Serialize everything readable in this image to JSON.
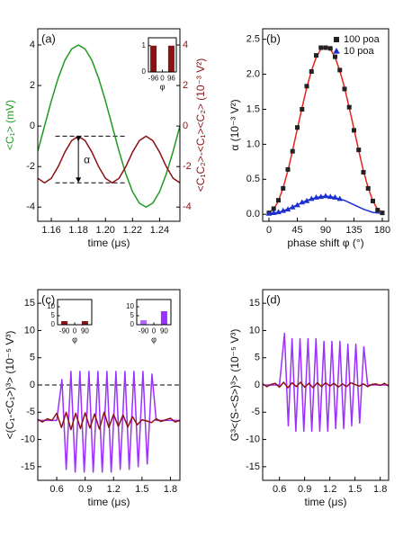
{
  "chart_data": [
    {
      "type": "line",
      "label": "(a)",
      "xlabel": "time (μs)",
      "ylabel": "<C₁> (mV)",
      "y2label": "<C₁C₂>-<C₁><C₂> (10⁻³ V²)",
      "ylabel_color": "#1f9a1f",
      "y2label_color": "#8b1212",
      "xlim": [
        1.15,
        1.255
      ],
      "xticks": [
        1.16,
        1.18,
        {
          "value": 1.2,
          "label": "1.20"
        },
        1.22,
        1.24
      ],
      "ylim": [
        -4.7,
        4.8
      ],
      "yticks": [
        -4,
        -2,
        0,
        2,
        4
      ],
      "y2lim": [
        -4.7,
        4.8
      ],
      "y2ticks": [
        -4,
        -2,
        0,
        2,
        4
      ],
      "x": [
        1.15,
        1.155,
        1.16,
        1.165,
        1.17,
        1.175,
        1.18,
        1.185,
        1.19,
        1.195,
        1.2,
        1.205,
        1.21,
        1.215,
        1.22,
        1.225,
        1.23,
        1.235,
        1.24,
        1.245,
        1.25,
        1.255
      ],
      "series": [
        {
          "color": "#1f9a1f",
          "values": [
            -1.24,
            0,
            1.24,
            2.35,
            3.24,
            3.8,
            4,
            3.8,
            3.24,
            2.35,
            1.24,
            0,
            -1.24,
            -2.35,
            -3.24,
            -3.8,
            -4,
            -3.8,
            -3.24,
            -2.35,
            -1.24,
            0
          ]
        },
        {
          "color": "#8b1212",
          "axis": "y2",
          "values": [
            -2.58,
            -2.8,
            -2.58,
            -2.01,
            -1.29,
            -0.72,
            -0.5,
            -0.72,
            -1.29,
            -2.01,
            -2.58,
            -2.8,
            -2.58,
            -2.01,
            -1.29,
            -0.72,
            -0.5,
            -0.72,
            -1.29,
            -2.01,
            -2.58,
            -2.8
          ]
        }
      ],
      "hlines": [
        {
          "y": -0.5,
          "xmin": 1.163,
          "xmax": 1.215
        },
        {
          "y": -2.8,
          "xmin": 1.163,
          "xmax": 1.215
        }
      ],
      "arrow": {
        "x": 1.18,
        "y": [
          -0.5,
          -2.8
        ]
      },
      "annotations": [
        {
          "text": "α",
          "x": 1.184,
          "y": -1.7
        }
      ]
    },
    {
      "type": "bar",
      "xlabel": "φ",
      "xlim": [
        -150,
        150
      ],
      "xticks": [
        -96,
        0,
        96
      ],
      "ylim": [
        0,
        1.3
      ],
      "yticks": [
        0,
        1
      ],
      "x": [
        -96,
        96
      ],
      "values": [
        1,
        1
      ],
      "colors": [
        "#8b1212",
        "#8b1212"
      ]
    },
    {
      "type": "line",
      "label": "(b)",
      "xlabel": "phase shift φ (°)",
      "ylabel": "α (10⁻³ V²)",
      "legend": "upper right",
      "xlim": [
        -10,
        190
      ],
      "xticks": [
        0,
        45,
        90,
        135,
        180
      ],
      "ylim": [
        -0.1,
        2.65
      ],
      "yticks": [
        {
          "value": 0,
          "label": "0.0"
        },
        0.5,
        {
          "value": 1,
          "label": "1.0"
        },
        1.5,
        {
          "value": 2,
          "label": "2.0"
        },
        2.5
      ],
      "series": [
        {
          "color": "#e8201a",
          "x": [
            0,
            7.5,
            15,
            22.5,
            30,
            37.5,
            45,
            52.5,
            60,
            67.5,
            75,
            82.5,
            90,
            97.5,
            105,
            112.5,
            120,
            127.5,
            135,
            142.5,
            150,
            157.5,
            165,
            172.5,
            180
          ],
          "values": [
            0.03,
            0.07,
            0.19,
            0.38,
            0.62,
            0.91,
            1.22,
            1.52,
            1.81,
            2.05,
            2.24,
            2.36,
            2.4,
            2.36,
            2.24,
            2.05,
            1.81,
            1.52,
            1.22,
            0.91,
            0.62,
            0.38,
            0.19,
            0.07,
            0.03
          ]
        },
        {
          "color": "#1b2fd0",
          "x": [
            0,
            15,
            30,
            45,
            60,
            75,
            90,
            105,
            120,
            135,
            150,
            165,
            180
          ],
          "values": [
            0.01,
            0.027,
            0.073,
            0.135,
            0.198,
            0.24,
            0.26,
            0.24,
            0.198,
            0.135,
            0.073,
            0.027,
            0.01
          ]
        },
        {
          "name": "100 poa",
          "marker": "square",
          "color": "#222222",
          "x": [
            0,
            7.5,
            15,
            22.5,
            30,
            37.5,
            45,
            52.5,
            60,
            67.5,
            75,
            82.5,
            90,
            97.5,
            105,
            112.5,
            120,
            127.5,
            135,
            142.5,
            150,
            157.5,
            165,
            172.5,
            180
          ],
          "values": [
            0.02,
            0.08,
            0.2,
            0.37,
            0.64,
            0.9,
            1.24,
            1.5,
            1.83,
            2.04,
            2.27,
            2.38,
            2.38,
            2.37,
            2.25,
            2.06,
            1.79,
            1.53,
            1.2,
            0.92,
            0.6,
            0.37,
            0.19,
            0.06,
            0.02
          ]
        },
        {
          "name": "10 poa",
          "marker": "triangle",
          "color": "#1b2fd0",
          "x": [
            0,
            7.5,
            15,
            22.5,
            30,
            37.5,
            45,
            52.5,
            60,
            67.5,
            75,
            82.5,
            90,
            97.5,
            105,
            112.5
          ],
          "values": [
            0.01,
            0.02,
            0.03,
            0.05,
            0.07,
            0.1,
            0.13,
            0.17,
            0.19,
            0.22,
            0.24,
            0.25,
            0.26,
            0.25,
            0.24,
            0.22
          ]
        }
      ]
    },
    {
      "type": "line",
      "label": "(c)",
      "xlabel": "time (μs)",
      "ylabel": "<(C₁-<C₁>)³> (10⁻⁵ V³)",
      "xlim": [
        0.4,
        1.9
      ],
      "xticks": [
        0.6,
        0.9,
        1.2,
        1.5,
        1.8
      ],
      "ylim": [
        -17.5,
        17.5
      ],
      "yticks": [
        -15,
        -10,
        -5,
        0,
        5,
        10,
        15
      ],
      "hlines": [
        {
          "y": 0
        }
      ],
      "series": [
        {
          "color": "#9b30ff",
          "x": [
            0.4,
            0.6,
            0.655,
            0.7,
            0.75,
            0.795,
            0.845,
            0.89,
            0.94,
            0.985,
            1.035,
            1.08,
            1.13,
            1.175,
            1.225,
            1.27,
            1.32,
            1.365,
            1.415,
            1.46,
            1.51,
            1.555,
            1.605,
            1.65,
            1.7,
            1.9
          ],
          "values": [
            -6.5,
            -6.5,
            1,
            -15.5,
            2.5,
            -16,
            2.5,
            -16,
            2.5,
            -16,
            2.5,
            -16,
            2.5,
            -16,
            2.5,
            -15.5,
            2.5,
            -15.5,
            2.5,
            -15,
            2.5,
            -14.5,
            2,
            -6.5,
            -6.5,
            -6.5
          ]
        },
        {
          "color": "#8b1212",
          "x": [
            0.4,
            0.45,
            0.5,
            0.55,
            0.6,
            0.65,
            0.7,
            0.75,
            0.8,
            0.85,
            0.9,
            0.95,
            1.0,
            1.05,
            1.1,
            1.15,
            1.2,
            1.25,
            1.3,
            1.35,
            1.4,
            1.45,
            1.5,
            1.55,
            1.6,
            1.65,
            1.7,
            1.75,
            1.8,
            1.85,
            1.9
          ],
          "values": [
            -6.3,
            -6.8,
            -6.2,
            -6.5,
            -5.2,
            -7.8,
            -5.0,
            -8.2,
            -5.2,
            -8.0,
            -5.1,
            -7.9,
            -5.3,
            -8.1,
            -5.0,
            -7.8,
            -5.4,
            -7.6,
            -5.5,
            -7.7,
            -5.8,
            -7.3,
            -6.4,
            -6.6,
            -6.9,
            -6.2,
            -6.7,
            -6.4,
            -6.1,
            -6.8,
            -6.5
          ]
        }
      ]
    },
    {
      "type": "bar",
      "xlabel": "φ",
      "xlim": [
        -150,
        150
      ],
      "xticks": [
        -90,
        0,
        90
      ],
      "ylim": [
        0,
        14
      ],
      "yticks": [
        0,
        5,
        10
      ],
      "x": [
        -90,
        90
      ],
      "values": [
        2,
        2
      ],
      "colors": [
        "#8b1212",
        "#8b1212"
      ]
    },
    {
      "type": "bar",
      "xlabel": "φ",
      "xlim": [
        -150,
        150
      ],
      "xticks": [
        -90,
        0,
        90
      ],
      "ylim": [
        0,
        14
      ],
      "yticks": [
        0,
        5,
        10
      ],
      "x": [
        -90,
        90
      ],
      "values": [
        2.5,
        7.5
      ],
      "colors": [
        "#b566ff",
        "#9b30ff"
      ]
    },
    {
      "type": "line",
      "label": "(d)",
      "xlabel": "time (μs)",
      "ylabel": "G³<(S-<S>)³> (10⁻⁵ V³)",
      "xlim": [
        0.4,
        1.9
      ],
      "xticks": [
        0.6,
        0.9,
        1.2,
        1.5,
        1.8
      ],
      "ylim": [
        -17.5,
        17.5
      ],
      "yticks": [
        -15,
        -10,
        -5,
        0,
        5,
        10,
        15
      ],
      "series": [
        {
          "color": "#9b30ff",
          "x": [
            0.4,
            0.6,
            0.66,
            0.705,
            0.75,
            0.795,
            0.845,
            0.89,
            0.94,
            0.985,
            1.035,
            1.08,
            1.13,
            1.175,
            1.225,
            1.27,
            1.32,
            1.365,
            1.415,
            1.46,
            1.51,
            1.555,
            1.605,
            1.65,
            1.7,
            1.9
          ],
          "values": [
            0,
            0,
            9.5,
            -7.5,
            8.5,
            -8.5,
            8.5,
            -8.5,
            8.5,
            -8.5,
            8.5,
            -8.5,
            8,
            -8.5,
            8,
            -8,
            8,
            -8,
            7.5,
            -7.5,
            7.5,
            -7,
            7,
            0,
            0,
            0
          ]
        },
        {
          "color": "#8b1212",
          "x": [
            0.4,
            0.45,
            0.5,
            0.55,
            0.6,
            0.65,
            0.7,
            0.75,
            0.8,
            0.85,
            0.9,
            0.95,
            1.0,
            1.05,
            1.1,
            1.15,
            1.2,
            1.25,
            1.3,
            1.35,
            1.4,
            1.45,
            1.5,
            1.55,
            1.6,
            1.65,
            1.7,
            1.75,
            1.8,
            1.85,
            1.9
          ],
          "values": [
            0.2,
            -0.3,
            0.1,
            0.3,
            -0.4,
            0.5,
            -0.5,
            0.4,
            -0.3,
            0.5,
            -0.4,
            0.3,
            -0.5,
            0.4,
            -0.3,
            0.4,
            -0.2,
            0.3,
            -0.4,
            0.2,
            -0.3,
            0.4,
            0.1,
            -0.2,
            0.2,
            -0.3,
            0.1,
            0.2,
            -0.1,
            0.3,
            -0.2
          ]
        }
      ]
    }
  ]
}
